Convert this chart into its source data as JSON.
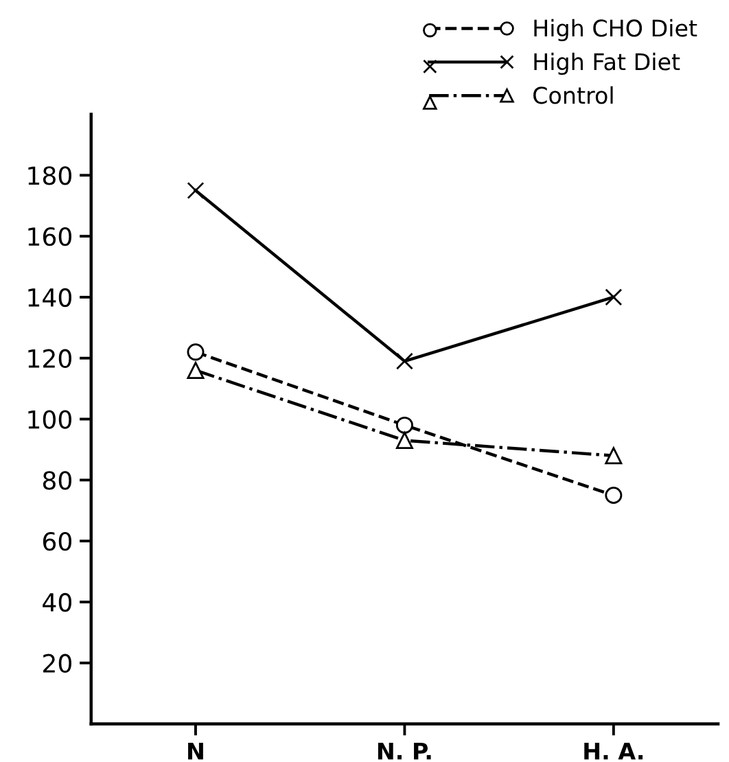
{
  "chart_data": {
    "type": "line",
    "categories": [
      "N",
      "N. P.",
      "H. A."
    ],
    "series": [
      {
        "name": "High CHO Diet",
        "color": "#000000",
        "values": [
          122,
          98,
          75
        ],
        "marker": "circle",
        "line_style": "dashed"
      },
      {
        "name": "High Fat Diet",
        "color": "#000000",
        "values": [
          175,
          119,
          140
        ],
        "marker": "cross",
        "line_style": "solid"
      },
      {
        "name": "Control",
        "color": "#000000",
        "values": [
          116,
          93,
          88
        ],
        "marker": "triangle",
        "line_style": "dashdot"
      }
    ],
    "ylim": [
      0,
      200
    ],
    "yticks": [
      20,
      40,
      60,
      80,
      100,
      120,
      140,
      160,
      180
    ],
    "grid": false,
    "legend": "top right"
  }
}
